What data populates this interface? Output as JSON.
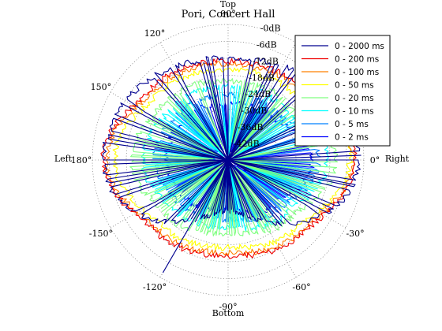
{
  "chart_data": {
    "type": "polar-line",
    "title": "Pori, Concert Hall",
    "direction_labels": {
      "top": "Top",
      "bottom": "Bottom",
      "left": "Left",
      "right": "Right"
    },
    "angle_tick_labels": [
      "0°",
      "-30°",
      "-60°",
      "-90°",
      "-120°",
      "-150°",
      "180°",
      "150°",
      "120°",
      "90°"
    ],
    "angle_ticks_deg": [
      0,
      -30,
      -60,
      -90,
      -120,
      -150,
      180,
      150,
      120,
      90
    ],
    "radial_unit": "dB",
    "radial_tick_labels": [
      "-0dB",
      "-6dB",
      "-12dB",
      "-18dB",
      "-24dB",
      "-30dB",
      "-36dB",
      "-42dB"
    ],
    "radial_ticks_db": [
      0,
      -6,
      -12,
      -18,
      -24,
      -30,
      -36,
      -42
    ],
    "radial_range_db": [
      -48,
      0
    ],
    "grid": true,
    "legend_position": "top-right",
    "colors": [
      "#00008f",
      "#ef0000",
      "#ff8000",
      "#ffff00",
      "#80ff80",
      "#00ffff",
      "#0080ff",
      "#0000ff"
    ],
    "series": [
      {
        "name": "0 - 2000 ms",
        "color": "#00008f",
        "peaks_db": [
          {
            "angle": 0,
            "level": -2
          },
          {
            "angle": 60,
            "level": -24
          },
          {
            "angle": 90,
            "level": -12
          },
          {
            "angle": 120,
            "level": -20
          },
          {
            "angle": 150,
            "level": -14
          },
          {
            "angle": 180,
            "level": -4
          },
          {
            "angle": -150,
            "level": -18
          },
          {
            "angle": -120,
            "level": -2
          },
          {
            "angle": -90,
            "level": -30
          },
          {
            "angle": -60,
            "level": -26
          },
          {
            "angle": -30,
            "level": -16
          },
          {
            "angle": 42,
            "level": -4
          }
        ]
      },
      {
        "name": "0 - 200 ms",
        "color": "#ef0000",
        "peaks_db": [
          {
            "angle": 0,
            "level": -3
          },
          {
            "angle": 90,
            "level": -13
          },
          {
            "angle": 180,
            "level": -4
          },
          {
            "angle": -90,
            "level": -14
          },
          {
            "angle": 45,
            "level": -12
          },
          {
            "angle": 135,
            "level": -11
          },
          {
            "angle": -45,
            "level": -11
          },
          {
            "angle": -135,
            "level": -12
          }
        ]
      },
      {
        "name": "0 - 100 ms",
        "color": "#ff8000",
        "peaks_db": [
          {
            "angle": 0,
            "level": -4
          },
          {
            "angle": 90,
            "level": -14
          },
          {
            "angle": 180,
            "level": -5
          },
          {
            "angle": -90,
            "level": -15
          },
          {
            "angle": 45,
            "level": -13
          },
          {
            "angle": 135,
            "level": -12
          },
          {
            "angle": -45,
            "level": -12
          },
          {
            "angle": -135,
            "level": -13
          }
        ]
      },
      {
        "name": "0 - 50 ms",
        "color": "#ffff00",
        "peaks_db": [
          {
            "angle": 0,
            "level": -5
          },
          {
            "angle": 90,
            "level": -16
          },
          {
            "angle": 180,
            "level": -8
          },
          {
            "angle": -90,
            "level": -17
          },
          {
            "angle": 45,
            "level": -15
          },
          {
            "angle": 135,
            "level": -14
          },
          {
            "angle": -45,
            "level": -14
          },
          {
            "angle": -135,
            "level": -15
          }
        ]
      },
      {
        "name": "0 - 20 ms",
        "color": "#80ff80",
        "peaks_db": [
          {
            "angle": 0,
            "level": -10
          },
          {
            "angle": 90,
            "level": -20
          },
          {
            "angle": 180,
            "level": -14
          },
          {
            "angle": -90,
            "level": -22
          },
          {
            "angle": 45,
            "level": -19
          },
          {
            "angle": 135,
            "level": -18
          },
          {
            "angle": -45,
            "level": -18
          },
          {
            "angle": -135,
            "level": -19
          }
        ]
      },
      {
        "name": "0 - 10 ms",
        "color": "#00ffff",
        "peaks_db": [
          {
            "angle": 0,
            "level": -13
          },
          {
            "angle": 90,
            "level": -22
          },
          {
            "angle": 180,
            "level": -18
          },
          {
            "angle": -90,
            "level": -24
          },
          {
            "angle": 45,
            "level": -21
          },
          {
            "angle": 135,
            "level": -21
          },
          {
            "angle": -45,
            "level": -20
          },
          {
            "angle": -135,
            "level": -22
          }
        ]
      },
      {
        "name": "0 - 5 ms",
        "color": "#0080ff",
        "peaks_db": [
          {
            "angle": 0,
            "level": -16
          },
          {
            "angle": 90,
            "level": -25
          },
          {
            "angle": 180,
            "level": -22
          },
          {
            "angle": -90,
            "level": -27
          },
          {
            "angle": 45,
            "level": -24
          },
          {
            "angle": 135,
            "level": -24
          },
          {
            "angle": -45,
            "level": -23
          },
          {
            "angle": -135,
            "level": -25
          }
        ]
      },
      {
        "name": "0 - 2 ms",
        "color": "#0000ff",
        "peaks_db": [
          {
            "angle": 0,
            "level": -18
          },
          {
            "angle": 90,
            "level": -28
          },
          {
            "angle": 180,
            "level": -26
          },
          {
            "angle": -90,
            "level": -30
          },
          {
            "angle": 45,
            "level": -26
          },
          {
            "angle": 135,
            "level": -27
          },
          {
            "angle": -45,
            "level": -25
          },
          {
            "angle": -135,
            "level": -28
          }
        ]
      }
    ]
  }
}
